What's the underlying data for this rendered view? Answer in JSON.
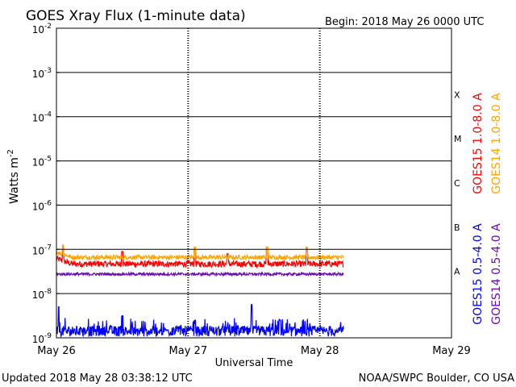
{
  "chart_data": {
    "type": "line",
    "title": "GOES Xray Flux (1-minute data)",
    "begin_label": "Begin:  2018 May 26 0000 UTC",
    "xlabel": "Universal Time",
    "ylabel_text": "Watts m",
    "ylabel_exp": "-2",
    "y_scale": "log",
    "ylim": [
      1e-09,
      0.01
    ],
    "xlim_days": [
      0,
      3
    ],
    "x_ticks": [
      {
        "day": 0,
        "label": "May 26"
      },
      {
        "day": 1,
        "label": "May 27"
      },
      {
        "day": 2,
        "label": "May 28"
      },
      {
        "day": 3,
        "label": "May 29"
      }
    ],
    "y_ticks": [
      {
        "exp": -2,
        "base": "10",
        "sup": "-2"
      },
      {
        "exp": -3,
        "base": "10",
        "sup": "-3"
      },
      {
        "exp": -4,
        "base": "10",
        "sup": "-4"
      },
      {
        "exp": -5,
        "base": "10",
        "sup": "-5"
      },
      {
        "exp": -6,
        "base": "10",
        "sup": "-6"
      },
      {
        "exp": -7,
        "base": "10",
        "sup": "-7"
      },
      {
        "exp": -8,
        "base": "10",
        "sup": "-8"
      },
      {
        "exp": -9,
        "base": "10",
        "sup": "-9"
      }
    ],
    "flare_classes": [
      {
        "label": "X",
        "exp": -3.5
      },
      {
        "label": "M",
        "exp": -4.5
      },
      {
        "label": "C",
        "exp": -5.5
      },
      {
        "label": "B",
        "exp": -6.5
      },
      {
        "label": "A",
        "exp": -7.5
      }
    ],
    "data_end_day": 2.18,
    "series": [
      {
        "name": "GOES15 1.0-8.0 A",
        "color": "#ff0000",
        "baseline_exp": -7.33,
        "noise": 0.07,
        "spikes": [
          [
            0.05,
            -6.95
          ],
          [
            0.5,
            -7.05
          ],
          [
            1.05,
            -7.0
          ],
          [
            1.3,
            -7.1
          ],
          [
            1.6,
            -6.95
          ],
          [
            1.9,
            -6.98
          ]
        ]
      },
      {
        "name": "GOES14 1.0-8.0 A",
        "color": "#ffa500",
        "baseline_exp": -7.18,
        "noise": 0.05,
        "spikes": [
          [
            0.05,
            -6.9
          ],
          [
            1.05,
            -6.95
          ],
          [
            1.6,
            -6.95
          ],
          [
            1.9,
            -6.95
          ]
        ]
      },
      {
        "name": "GOES15 0.5-4.0 A",
        "color": "#0000ff",
        "baseline_exp": -8.85,
        "noise": 0.12,
        "spikes": [
          [
            0.02,
            -8.3
          ],
          [
            0.5,
            -8.5
          ],
          [
            1.05,
            -8.6
          ],
          [
            1.48,
            -8.25
          ],
          [
            1.7,
            -8.6
          ]
        ]
      },
      {
        "name": "GOES14 0.5-4.0 A",
        "color": "#6a0dad",
        "baseline_exp": -7.56,
        "noise": 0.03,
        "spikes": []
      }
    ]
  },
  "footer": {
    "updated": "Updated 2018 May 28 03:38:12 UTC",
    "source": "NOAA/SWPC Boulder, CO USA"
  }
}
